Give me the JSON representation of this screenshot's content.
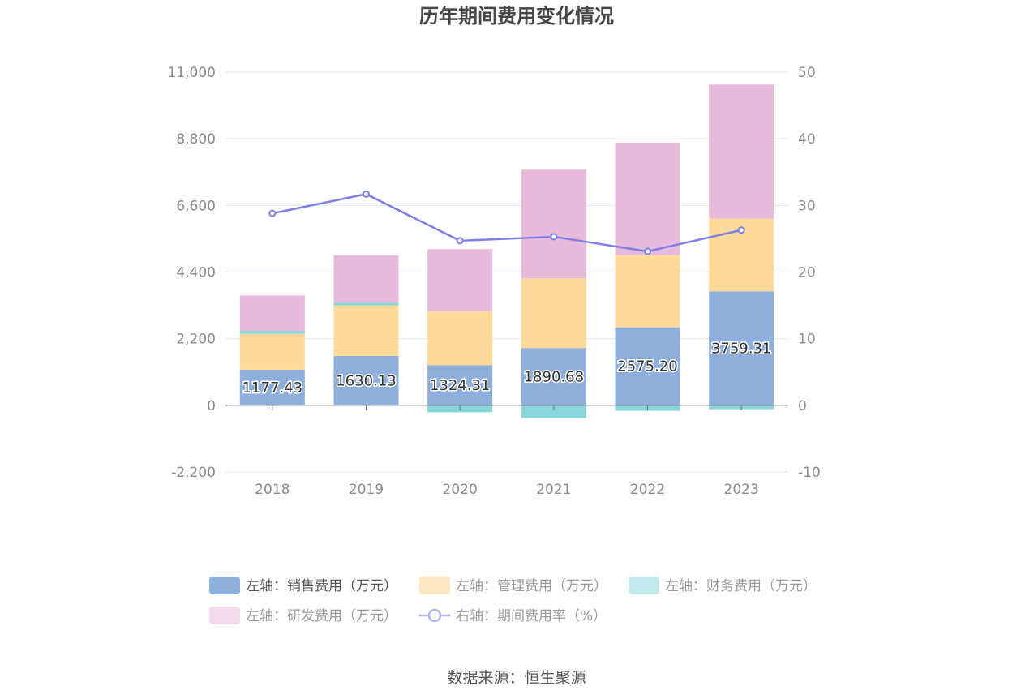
{
  "chart_data": {
    "type": "bar",
    "title": "历年期间费用变化情况",
    "source": "数据来源：恒生聚源",
    "categories": [
      "2018",
      "2019",
      "2020",
      "2021",
      "2022",
      "2023"
    ],
    "left_axis": {
      "min": -2200,
      "max": 11000,
      "ticks": [
        "11,000",
        "8,800",
        "6,600",
        "4,400",
        "2,200",
        "0",
        "-2,200"
      ],
      "tick_values": [
        11000,
        8800,
        6600,
        4400,
        2200,
        0,
        -2200
      ]
    },
    "right_axis": {
      "min": -10,
      "max": 50,
      "ticks": [
        "50",
        "40",
        "30",
        "20",
        "10",
        "0",
        "-10"
      ],
      "tick_values": [
        50,
        40,
        30,
        20,
        10,
        0,
        -10
      ]
    },
    "grid": true,
    "legend_position": "bottom",
    "series": [
      {
        "name": "左轴：销售费用（万元）",
        "type": "bar",
        "axis": "left",
        "color": "#8eaedb",
        "legend_color": "#8eaedb",
        "values": [
          1177.43,
          1630.13,
          1324.31,
          1890.68,
          2575.2,
          3759.31
        ],
        "labels": [
          "1177.43",
          "1630.13",
          "1324.31",
          "1890.68",
          "2575.20",
          "3759.31"
        ]
      },
      {
        "name": "左轴：管理费用（万元）",
        "type": "bar",
        "axis": "left",
        "color": "#ffd997",
        "legend_color": "#ffe9c4",
        "values": [
          1180,
          1670,
          1770,
          2300,
          2380,
          2400
        ]
      },
      {
        "name": "左轴：财务费用（万元）",
        "type": "bar",
        "axis": "left",
        "color": "#88d6d9",
        "legend_color": "#c2e9eb",
        "values": [
          100,
          90,
          -230,
          -420,
          -180,
          -130
        ]
      },
      {
        "name": "左轴：研发费用（万元）",
        "type": "bar",
        "axis": "left",
        "color": "#e7b9da",
        "legend_color": "#f2daec",
        "values": [
          1170,
          1560,
          2060,
          3590,
          3720,
          4430
        ]
      },
      {
        "name": "右轴：期间费用率（%）",
        "type": "line",
        "axis": "right",
        "color": "#7b7fe6",
        "legend_color": "#b3b6f0",
        "values": [
          28.8,
          31.7,
          24.7,
          25.3,
          23.1,
          26.3
        ]
      }
    ]
  }
}
